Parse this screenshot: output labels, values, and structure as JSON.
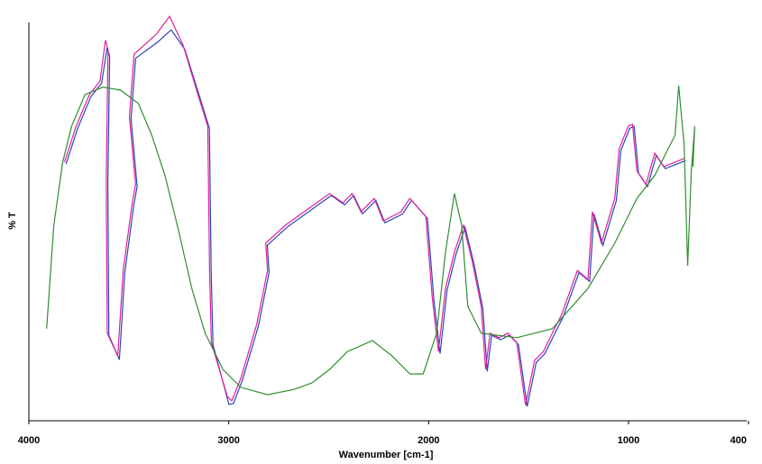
{
  "chart_data": {
    "type": "line",
    "xlabel": "Wavenumber [cm-1]",
    "ylabel": "% T",
    "xlim": [
      4000,
      400
    ],
    "xticks": [
      4000,
      3000,
      2000,
      1000,
      400
    ],
    "ylim": [
      0,
      100
    ],
    "series": [
      {
        "color": "#2a45b8",
        "x": [
          3814,
          3756,
          3689,
          3636,
          3609,
          3596,
          3605,
          3600,
          3547,
          3520,
          3475,
          3458,
          3489,
          3466,
          3355,
          3288,
          3221,
          3146,
          3097,
          3088,
          3079,
          2999,
          2977,
          2932,
          2852,
          2798,
          2807,
          2709,
          2553,
          2487,
          2420,
          2375,
          2331,
          2264,
          2219,
          2130,
          2086,
          2006,
          1974,
          1943,
          1908,
          1863,
          1818,
          1774,
          1729,
          1707,
          1685,
          1640,
          1596,
          1551,
          1507,
          1462,
          1418,
          1373,
          1328,
          1248,
          1195,
          1173,
          1128,
          1061,
          1039,
          994,
          972,
          950,
          905,
          861,
          816,
          714
        ],
        "values": [
          63.0,
          71.8,
          79.6,
          82.9,
          91.5,
          89.5,
          58.6,
          21.0,
          15.0,
          36.4,
          53.0,
          57.5,
          74.1,
          89.0,
          93.0,
          96.0,
          91.3,
          79.6,
          71.8,
          36.4,
          18.7,
          4.0,
          4.2,
          9.9,
          23.2,
          36.4,
          43.1,
          47.5,
          53.0,
          55.3,
          53.0,
          55.3,
          50.8,
          54.1,
          48.6,
          50.8,
          54.1,
          49.7,
          29.8,
          16.5,
          32.0,
          40.9,
          47.5,
          38.7,
          27.6,
          12.1,
          21.0,
          19.9,
          21.0,
          18.7,
          3.5,
          14.3,
          16.5,
          21.0,
          25.4,
          36.4,
          34.2,
          50.8,
          43.1,
          54.1,
          66.3,
          71.8,
          72.3,
          60.8,
          57.5,
          65.2,
          61.9,
          63.9
        ]
      },
      {
        "color": "#e0209a",
        "x": [
          3822,
          3764,
          3697,
          3644,
          3617,
          3604,
          3613,
          3608,
          3555,
          3528,
          3483,
          3466,
          3497,
          3474,
          3363,
          3296,
          3229,
          3154,
          3105,
          3096,
          3087,
          3007,
          2985,
          2940,
          2860,
          2806,
          2815,
          2717,
          2561,
          2495,
          2428,
          2383,
          2339,
          2272,
          2227,
          2138,
          2094,
          2014,
          1982,
          1951,
          1916,
          1871,
          1826,
          1782,
          1737,
          1715,
          1693,
          1648,
          1604,
          1559,
          1515,
          1470,
          1426,
          1381,
          1336,
          1256,
          1203,
          1181,
          1136,
          1069,
          1047,
          1002,
          980,
          958,
          913,
          869,
          824,
          722
        ],
        "values": [
          63.5,
          72.3,
          80.1,
          83.4,
          93.4,
          91.2,
          59.1,
          21.5,
          15.9,
          36.9,
          53.5,
          58.0,
          74.6,
          90.0,
          94.9,
          99.3,
          92.3,
          80.1,
          72.3,
          36.9,
          19.2,
          6.0,
          4.9,
          10.4,
          23.7,
          36.9,
          43.6,
          48.0,
          53.5,
          55.8,
          53.5,
          55.8,
          51.3,
          54.6,
          49.1,
          51.3,
          54.6,
          50.2,
          30.3,
          17.0,
          32.5,
          41.4,
          48.0,
          39.2,
          28.1,
          12.6,
          21.5,
          20.4,
          21.5,
          19.2,
          3.8,
          14.8,
          17.0,
          21.5,
          25.9,
          36.9,
          34.7,
          51.3,
          43.6,
          54.6,
          66.8,
          72.3,
          72.8,
          61.3,
          58.0,
          65.7,
          62.4,
          64.4
        ]
      },
      {
        "color": "#2f8f2f",
        "x": [
          3911,
          3875,
          3831,
          3786,
          3719,
          3630,
          3541,
          3452,
          3385,
          3319,
          3252,
          3185,
          3118,
          3029,
          2940,
          2806,
          2673,
          2584,
          2495,
          2406,
          2281,
          2183,
          2094,
          2027,
          1960,
          1916,
          1871,
          1835,
          1804,
          1737,
          1559,
          1381,
          1203,
          1069,
          958,
          869,
          802,
          767,
          749,
          722,
          704,
          686,
          669,
          678
        ],
        "values": [
          22.6,
          48.0,
          63.5,
          72.3,
          80.1,
          81.9,
          81.2,
          77.9,
          70.1,
          60.2,
          46.9,
          32.5,
          21.5,
          12.6,
          8.2,
          6.4,
          7.7,
          9.3,
          12.6,
          17.0,
          19.7,
          15.9,
          11.5,
          11.5,
          21.5,
          41.4,
          55.8,
          48.0,
          28.1,
          21.5,
          20.4,
          22.6,
          32.5,
          43.6,
          54.6,
          60.2,
          66.8,
          70.1,
          82.3,
          67.9,
          38.1,
          61.3,
          72.3,
          62.4
        ]
      }
    ]
  }
}
